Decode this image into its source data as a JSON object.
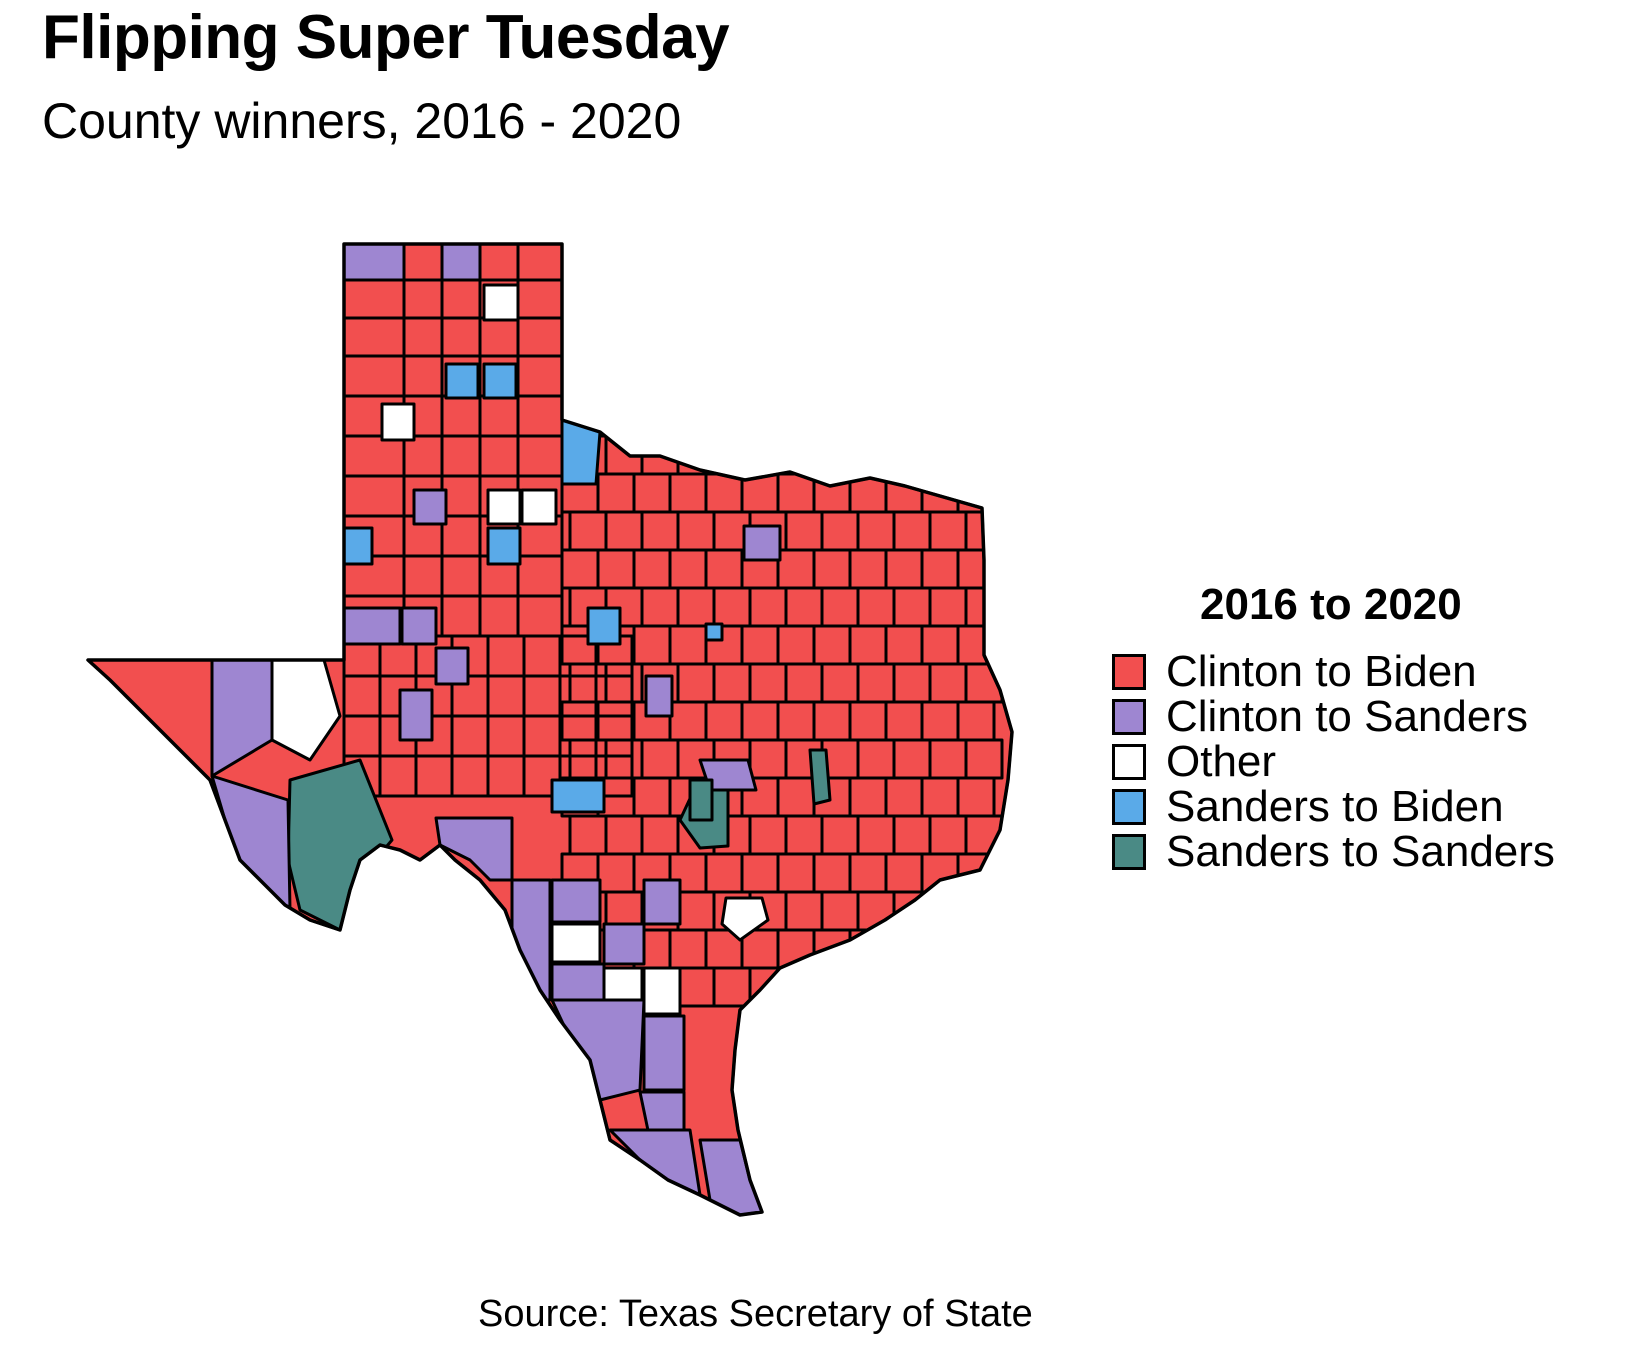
{
  "title": "Flipping Super Tuesday",
  "subtitle": "County winners, 2016 - 2020",
  "source": "Source: Texas Secretary of State",
  "legend": {
    "title": "2016 to 2020",
    "items": [
      {
        "label": "Clinton to Biden",
        "color": "#f24f4f"
      },
      {
        "label": "Clinton to Sanders",
        "color": "#9e86d1"
      },
      {
        "label": "Other",
        "color": "#ffffff"
      },
      {
        "label": "Sanders to Biden",
        "color": "#5aaae8"
      },
      {
        "label": "Sanders to Sanders",
        "color": "#4a8a85"
      }
    ]
  },
  "map": {
    "region": "Texas",
    "unit": "county",
    "counties": [
      {
        "id": "c1",
        "category": "Clinton to Sanders"
      },
      {
        "id": "c2",
        "category": "Clinton to Biden"
      },
      {
        "id": "c3",
        "category": "Clinton to Sanders"
      },
      {
        "id": "c4",
        "category": "Clinton to Biden"
      },
      {
        "id": "c5",
        "category": "Clinton to Biden"
      },
      {
        "id": "c6",
        "category": "Other"
      },
      {
        "id": "c7",
        "category": "Sanders to Biden"
      },
      {
        "id": "c8",
        "category": "Sanders to Biden"
      },
      {
        "id": "c9",
        "category": "Other"
      },
      {
        "id": "c10",
        "category": "Clinton to Sanders"
      },
      {
        "id": "c11",
        "category": "Other"
      },
      {
        "id": "c12",
        "category": "Other"
      },
      {
        "id": "c13",
        "category": "Sanders to Biden"
      },
      {
        "id": "c14",
        "category": "Sanders to Biden"
      },
      {
        "id": "c15",
        "category": "Clinton to Sanders"
      },
      {
        "id": "c16",
        "category": "Sanders to Biden"
      },
      {
        "id": "c17",
        "category": "Clinton to Sanders"
      },
      {
        "id": "c18",
        "category": "Clinton to Sanders"
      },
      {
        "id": "c19",
        "category": "Sanders to Biden"
      },
      {
        "id": "c20",
        "category": "Clinton to Sanders"
      },
      {
        "id": "c21",
        "category": "Sanders to Sanders"
      },
      {
        "id": "c22",
        "category": "Other"
      },
      {
        "id": "c23",
        "category": "Clinton to Sanders"
      },
      {
        "id": "c24",
        "category": "Sanders to Sanders"
      },
      {
        "id": "c25",
        "category": "Clinton to Sanders"
      },
      {
        "id": "c26",
        "category": "Clinton to Sanders"
      },
      {
        "id": "c27",
        "category": "Sanders to Biden"
      },
      {
        "id": "c28",
        "category": "Clinton to Sanders"
      },
      {
        "id": "c29",
        "category": "Sanders to Sanders"
      },
      {
        "id": "c30",
        "category": "Sanders to Sanders"
      },
      {
        "id": "c31",
        "category": "Clinton to Sanders"
      },
      {
        "id": "c32",
        "category": "Clinton to Sanders"
      },
      {
        "id": "c33",
        "category": "Other"
      },
      {
        "id": "c34",
        "category": "Other"
      },
      {
        "id": "c35",
        "category": "Other"
      },
      {
        "id": "c36",
        "category": "Clinton to Sanders"
      },
      {
        "id": "c37",
        "category": "Clinton to Sanders"
      },
      {
        "id": "c38",
        "category": "Other"
      },
      {
        "id": "c39",
        "category": "Clinton to Sanders"
      },
      {
        "id": "c40",
        "category": "Clinton to Sanders"
      },
      {
        "id": "c41",
        "category": "Clinton to Sanders"
      },
      {
        "id": "c42",
        "category": "Clinton to Sanders"
      },
      {
        "id": "c43",
        "category": "Clinton to Sanders"
      },
      {
        "id": "c44",
        "category": "Clinton to Sanders"
      },
      {
        "id": "c45",
        "category": "Sanders to Biden"
      },
      {
        "id": "c46",
        "category": "Clinton to Sanders"
      },
      {
        "id": "c47",
        "category": "Clinton to Sanders"
      },
      {
        "id": "c48",
        "category": "Sanders to Sanders"
      }
    ]
  }
}
